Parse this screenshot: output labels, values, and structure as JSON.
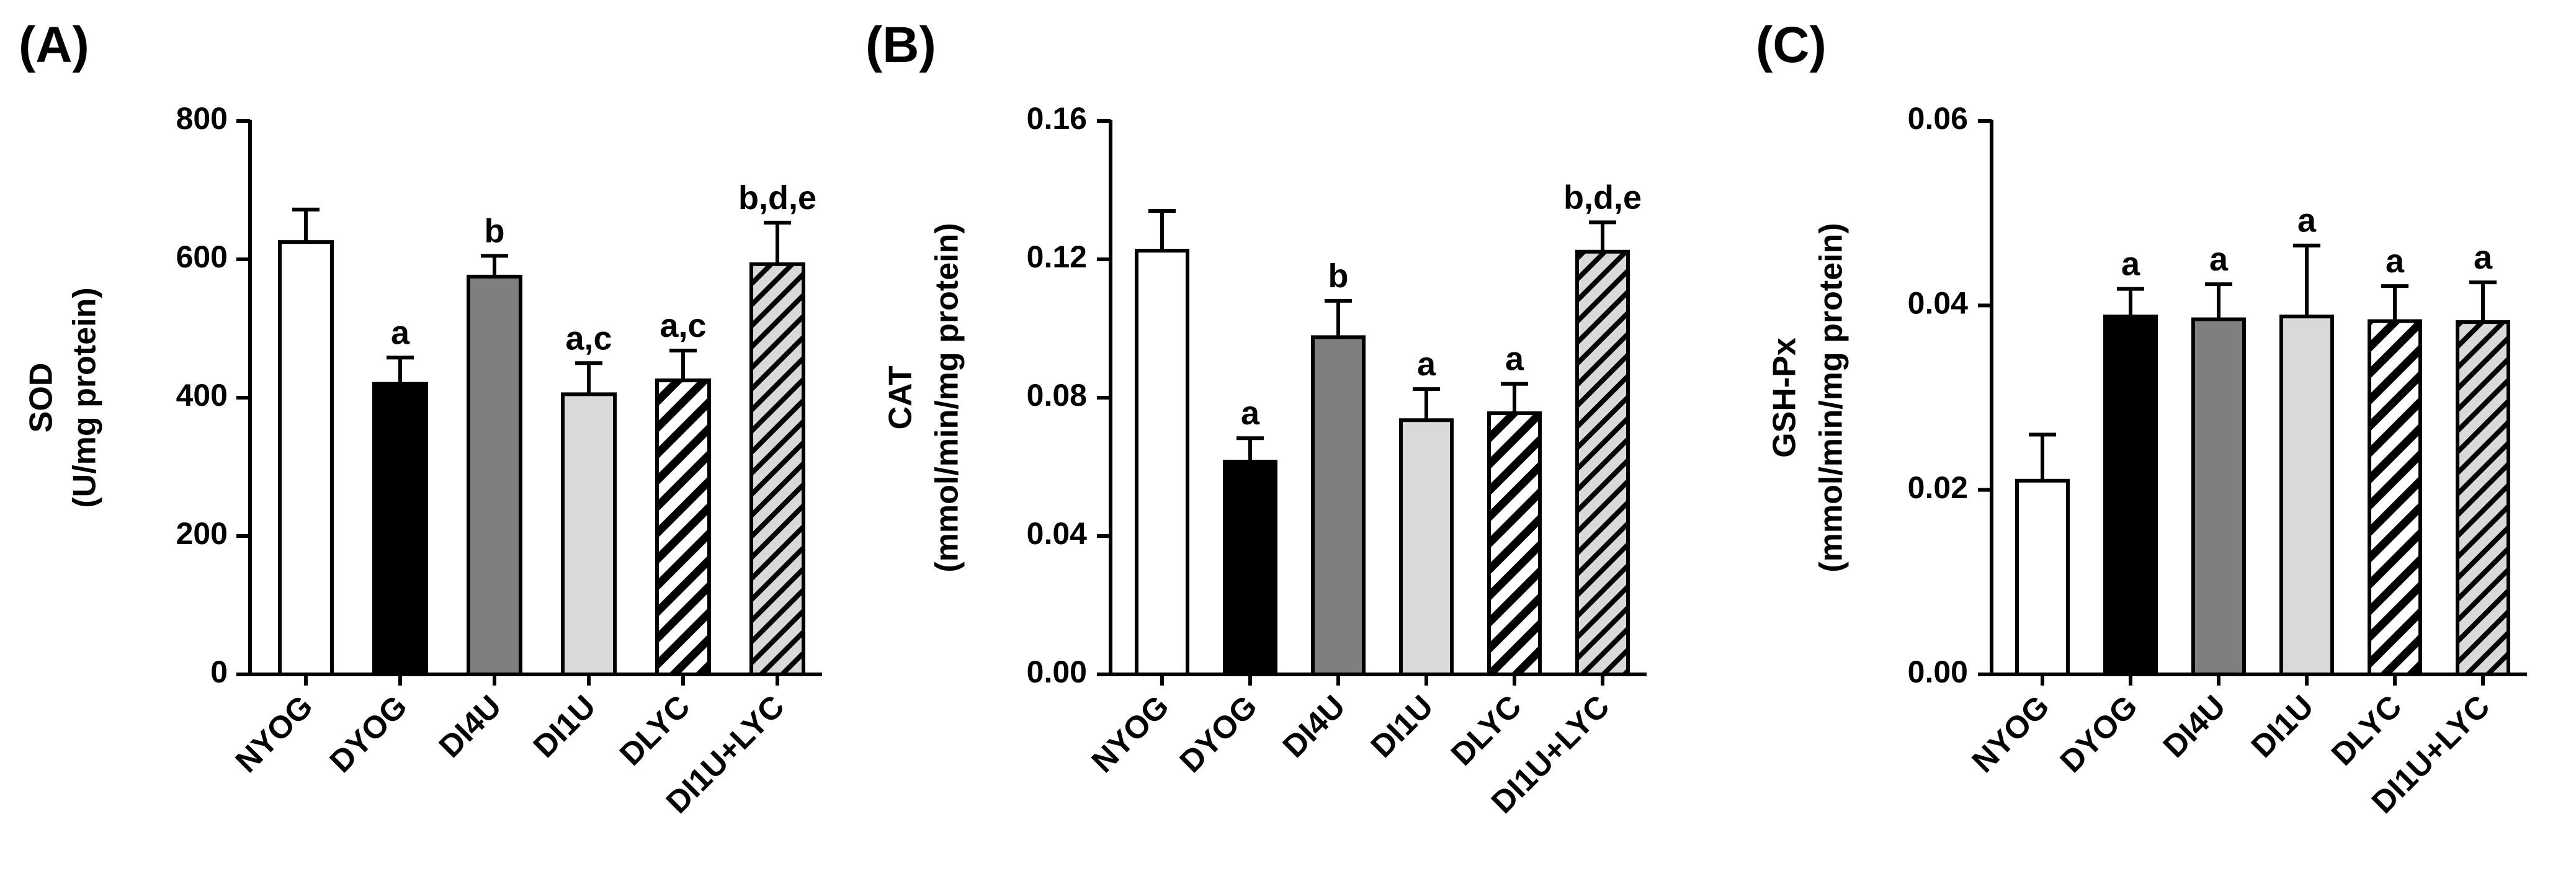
{
  "chart_data": [
    {
      "type": "bar",
      "panel_label": "(A)",
      "ylabel": "SOD",
      "ylabel_unit": "(U/mg protein)",
      "ylim": [
        0,
        800
      ],
      "yticks": [
        0,
        200,
        400,
        600,
        800
      ],
      "ytick_labels": [
        "0",
        "200",
        "400",
        "600",
        "800"
      ],
      "categories": [
        "NYOG",
        "DYOG",
        "DI4U",
        "DI1U",
        "DLYC",
        "DI1U+LYC"
      ],
      "values": [
        625,
        420,
        575,
        405,
        425,
        593
      ],
      "errors": [
        47,
        38,
        30,
        45,
        43,
        60
      ],
      "significance": [
        "",
        "a",
        "b",
        "a,c",
        "a,c",
        "b,d,e"
      ]
    },
    {
      "type": "bar",
      "panel_label": "(B)",
      "ylabel": "CAT",
      "ylabel_unit": "(mmol/min/mg protein)",
      "ylim": [
        0,
        0.16
      ],
      "yticks": [
        0,
        0.04,
        0.08,
        0.12,
        0.16
      ],
      "ytick_labels": [
        "0.00",
        "0.04",
        "0.08",
        "0.12",
        "0.16"
      ],
      "categories": [
        "NYOG",
        "DYOG",
        "DI4U",
        "DI1U",
        "DLYC",
        "DI1U+LYC"
      ],
      "values": [
        0.1225,
        0.0615,
        0.0975,
        0.0735,
        0.0755,
        0.1222
      ],
      "errors": [
        0.0115,
        0.0068,
        0.0105,
        0.009,
        0.0085,
        0.0085
      ],
      "significance": [
        "",
        "a",
        "b",
        "a",
        "a",
        "b,d,e"
      ]
    },
    {
      "type": "bar",
      "panel_label": "(C)",
      "ylabel": "GSH-Px",
      "ylabel_unit": "(mmol/min/mg protein)",
      "ylim": [
        0,
        0.06
      ],
      "yticks": [
        0,
        0.02,
        0.04,
        0.06
      ],
      "ytick_labels": [
        "0.00",
        "0.02",
        "0.04",
        "0.06"
      ],
      "categories": [
        "NYOG",
        "DYOG",
        "DI4U",
        "DI1U",
        "DLYC",
        "DI1U+LYC"
      ],
      "values": [
        0.021,
        0.0388,
        0.0385,
        0.0388,
        0.0383,
        0.0382
      ],
      "errors": [
        0.005,
        0.003,
        0.0038,
        0.0077,
        0.0038,
        0.0043
      ],
      "significance": [
        "",
        "a",
        "a",
        "a",
        "a",
        "a"
      ]
    }
  ],
  "bar_styles": [
    {
      "fill": "#ffffff",
      "pattern": "none"
    },
    {
      "fill": "#000000",
      "pattern": "none"
    },
    {
      "fill": "#7f7f7f",
      "pattern": "none"
    },
    {
      "fill": "#d9d9d9",
      "pattern": "none"
    },
    {
      "fill": "#ffffff",
      "pattern": "black-diagonal-stripes"
    },
    {
      "fill": "#d9d9d9",
      "pattern": "black-diagonal-stripes"
    }
  ]
}
